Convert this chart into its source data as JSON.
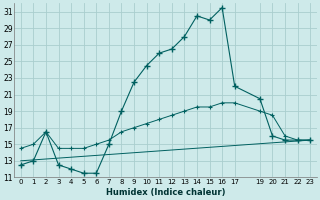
{
  "xlabel": "Humidex (Indice chaleur)",
  "bg_color": "#ceeaea",
  "grid_color": "#aacece",
  "line_color": "#006060",
  "xlim": [
    -0.5,
    23.5
  ],
  "ylim": [
    11,
    32
  ],
  "yticks": [
    11,
    13,
    15,
    17,
    19,
    21,
    23,
    25,
    27,
    29,
    31
  ],
  "xtick_positions": [
    0,
    1,
    2,
    3,
    4,
    5,
    6,
    7,
    8,
    9,
    10,
    11,
    12,
    13,
    14,
    15,
    16,
    17,
    19,
    20,
    21,
    22,
    23
  ],
  "xtick_labels": [
    "0",
    "1",
    "2",
    "3",
    "4",
    "5",
    "6",
    "7",
    "8",
    "9",
    "10",
    "11",
    "12",
    "13",
    "14",
    "15",
    "16",
    "17",
    "19",
    "20",
    "21",
    "22",
    "23"
  ],
  "curve1_x": [
    0,
    1,
    2,
    3,
    4,
    5,
    6,
    7,
    8,
    9,
    10,
    11,
    12,
    13,
    14,
    15,
    16,
    17,
    19,
    20,
    21,
    22,
    23
  ],
  "curve1_y": [
    12.5,
    13.0,
    16.5,
    12.5,
    12.0,
    11.5,
    11.5,
    15.0,
    19.0,
    22.5,
    24.5,
    26.0,
    26.5,
    28.0,
    30.5,
    30.0,
    31.5,
    22.0,
    20.5,
    16.0,
    15.5,
    15.5,
    15.5
  ],
  "curve2_x": [
    0,
    1,
    2,
    3,
    4,
    5,
    6,
    7,
    8,
    9,
    10,
    11,
    12,
    13,
    14,
    15,
    16,
    17,
    19,
    20,
    21,
    22,
    23
  ],
  "curve2_y": [
    14.5,
    15.0,
    16.5,
    14.5,
    14.5,
    14.5,
    15.0,
    15.5,
    16.5,
    17.0,
    17.5,
    18.0,
    18.5,
    19.0,
    19.5,
    19.5,
    20.0,
    20.0,
    19.0,
    18.5,
    16.0,
    15.5,
    15.5
  ],
  "curve3_x": [
    0,
    23
  ],
  "curve3_y": [
    13.0,
    15.5
  ]
}
